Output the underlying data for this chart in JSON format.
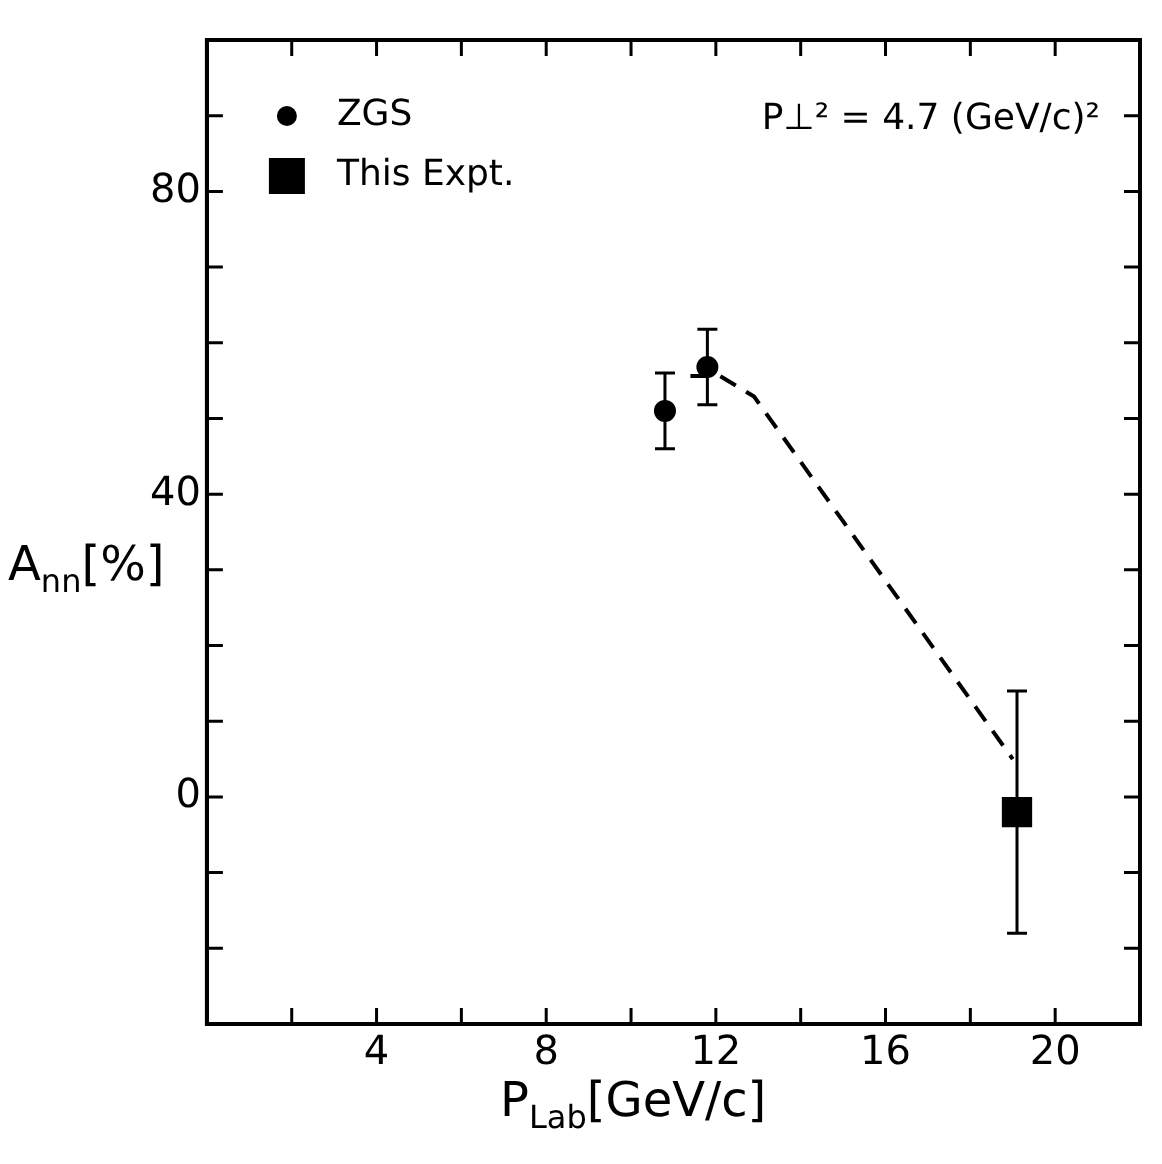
{
  "chart_data": {
    "type": "scatter",
    "xlabel": "P$_{Lab}$[GeV/c]",
    "ylabel": "A$_{nn}$[%]",
    "annotations": [
      "P⊥² = 4.7 (GeV/c)²"
    ],
    "xlim": [
      0,
      22
    ],
    "xticks": [
      {
        "value": 2,
        "label": null
      },
      4,
      {
        "value": 6,
        "label": null
      },
      8,
      {
        "value": 10,
        "label": null
      },
      12,
      {
        "value": 14,
        "label": null
      },
      16,
      {
        "value": 18,
        "label": null
      },
      20
    ],
    "ylim": [
      -30,
      100
    ],
    "yticks": [
      {
        "value": -20,
        "label": null
      },
      {
        "value": -10,
        "label": null
      },
      0,
      {
        "value": 10,
        "label": null
      },
      {
        "value": 20,
        "label": null
      },
      {
        "value": 30,
        "label": null
      },
      40,
      {
        "value": 50,
        "label": null
      },
      {
        "value": 60,
        "label": null
      },
      {
        "value": 70,
        "label": null
      },
      80,
      {
        "value": 90,
        "label": null
      }
    ],
    "legend": "top left",
    "series": [
      {
        "name": "ZGS",
        "type": "scatter",
        "marker": "circle",
        "color": "#000000",
        "x": [
          10.8,
          11.8
        ],
        "values": [
          51,
          56.8
        ],
        "errors": [
          5,
          5
        ]
      },
      {
        "name": "This Expt.",
        "type": "scatter",
        "marker": "square",
        "color": "#000000",
        "x": [
          19.1
        ],
        "values": [
          -2
        ],
        "errors": [
          [
            -18,
            14
          ]
        ]
      },
      {
        "type": "line",
        "line_style": "dashed",
        "marker": "none",
        "color": "#000000",
        "x": [
          11.4,
          12.1,
          12.9,
          19.0
        ],
        "values": [
          55.6,
          55.6,
          52.9,
          5
        ]
      }
    ]
  }
}
